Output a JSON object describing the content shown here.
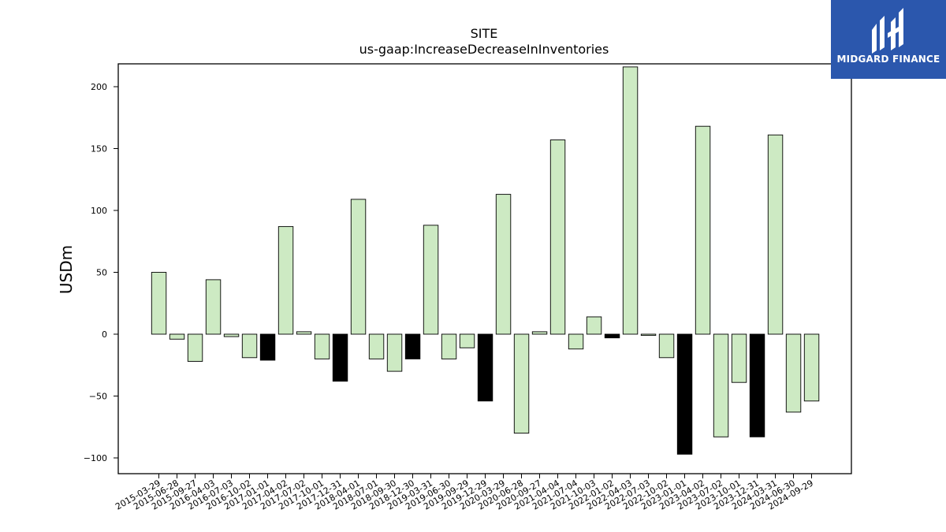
{
  "chart_data": {
    "type": "bar",
    "title": "SITE",
    "subtitle": "us-gaap:IncreaseDecreaseInInventories",
    "xlabel": "",
    "ylabel": "USDm",
    "ylim": [
      -112,
      220
    ],
    "yticks": [
      -100,
      -50,
      0,
      50,
      100,
      150,
      200
    ],
    "grid": false,
    "colors": {
      "default": "#cdeac3",
      "highlight": "#000000",
      "edge": "#000000"
    },
    "categories": [
      "2015-03-29",
      "2015-06-28",
      "2015-09-27",
      "2016-04-03",
      "2016-07-03",
      "2016-10-02",
      "2017-01-01",
      "2017-04-02",
      "2017-07-02",
      "2017-10-01",
      "2017-12-31",
      "2018-04-01",
      "2018-07-01",
      "2018-09-30",
      "2018-12-30",
      "2019-03-31",
      "2019-06-30",
      "2019-09-29",
      "2019-12-29",
      "2020-03-29",
      "2020-06-28",
      "2020-09-27",
      "2021-04-04",
      "2021-07-04",
      "2021-10-03",
      "2022-01-02",
      "2022-04-03",
      "2022-07-03",
      "2022-10-02",
      "2023-01-01",
      "2023-04-02",
      "2023-07-02",
      "2023-10-01",
      "2023-12-31",
      "2024-03-31",
      "2024-06-30",
      "2024-09-29"
    ],
    "values": [
      50,
      -4,
      -22,
      44,
      -2,
      -19,
      -21,
      87,
      2,
      -20,
      -38,
      109,
      -20,
      -30,
      -20,
      88,
      -20,
      -11,
      -54,
      113,
      -80,
      2,
      157,
      -12,
      14,
      -3,
      216,
      -1,
      -19,
      -97,
      168,
      -83,
      -39,
      -83,
      161,
      -63,
      -54
    ],
    "highlight": [
      false,
      false,
      false,
      false,
      false,
      false,
      true,
      false,
      false,
      false,
      true,
      false,
      false,
      false,
      true,
      false,
      false,
      false,
      true,
      false,
      false,
      false,
      false,
      false,
      false,
      true,
      false,
      false,
      false,
      true,
      false,
      false,
      false,
      true,
      false,
      false,
      false
    ]
  },
  "logo": {
    "text": "MIDGARD FINANCE"
  }
}
